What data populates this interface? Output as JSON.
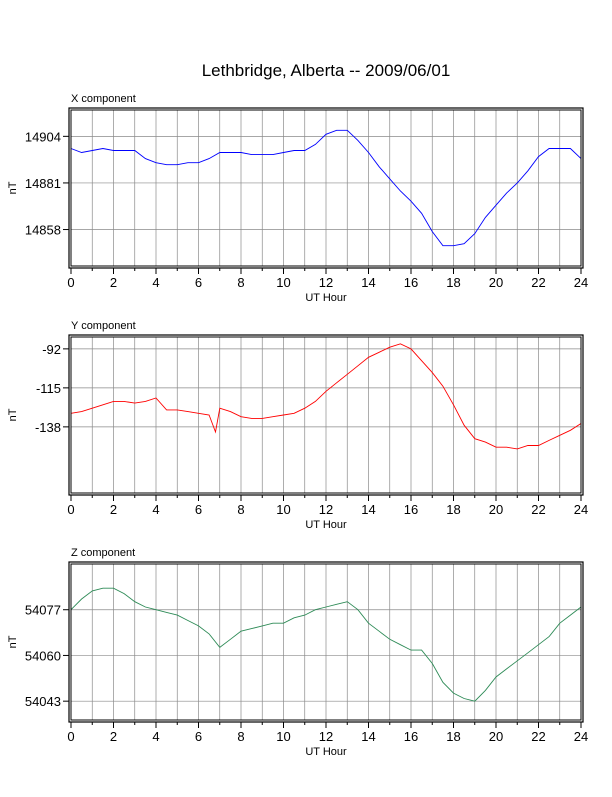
{
  "page": {
    "title": "Lethbridge, Alberta -- 2009/06/01"
  },
  "chart_data": [
    {
      "type": "line",
      "panel_title": "X component",
      "xlabel": "UT Hour",
      "ylabel": "nT",
      "xlim": [
        0,
        24
      ],
      "ylim": [
        14840,
        14917
      ],
      "x_ticks": [
        0,
        2,
        4,
        6,
        8,
        10,
        12,
        14,
        16,
        18,
        20,
        22,
        24
      ],
      "y_ticks": [
        14858,
        14881,
        14904
      ],
      "grid": true,
      "color": "#0000ff",
      "x": [
        0,
        0.5,
        1,
        1.5,
        2,
        2.5,
        3,
        3.5,
        4,
        4.5,
        5,
        5.5,
        6,
        6.5,
        7,
        7.5,
        8,
        8.5,
        9,
        9.5,
        10,
        10.5,
        11,
        11.5,
        12,
        12.5,
        13,
        13.5,
        14,
        14.5,
        15,
        15.5,
        16,
        16.5,
        17,
        17.5,
        18,
        18.5,
        19,
        19.5,
        20,
        20.5,
        21,
        21.5,
        22,
        22.5,
        23,
        23.5,
        24
      ],
      "y": [
        14898,
        14896,
        14897,
        14898,
        14897,
        14897,
        14897,
        14893,
        14891,
        14890,
        14890,
        14891,
        14891,
        14893,
        14896,
        14896,
        14896,
        14895,
        14895,
        14895,
        14896,
        14897,
        14897,
        14900,
        14905,
        14907,
        14907,
        14902,
        14896,
        14889,
        14883,
        14877,
        14872,
        14866,
        14857,
        14850,
        14850,
        14851,
        14856,
        14864,
        14870,
        14876,
        14881,
        14887,
        14894,
        14898,
        14898,
        14898,
        14893
      ]
    },
    {
      "type": "line",
      "panel_title": "Y component",
      "xlabel": "UT Hour",
      "ylabel": "nT",
      "xlim": [
        0,
        24
      ],
      "ylim": [
        -177,
        -85
      ],
      "x_ticks": [
        0,
        2,
        4,
        6,
        8,
        10,
        12,
        14,
        16,
        18,
        20,
        22,
        24
      ],
      "y_ticks": [
        -92,
        -115,
        -138
      ],
      "grid": true,
      "color": "#ff0000",
      "x": [
        0,
        0.5,
        1,
        1.5,
        2,
        2.5,
        3,
        3.5,
        4,
        4.5,
        5,
        5.5,
        6,
        6.5,
        6.8,
        7,
        7.5,
        8,
        8.5,
        9,
        9.5,
        10,
        10.5,
        11,
        11.5,
        12,
        12.5,
        13,
        13.5,
        14,
        14.5,
        15,
        15.5,
        16,
        16.5,
        17,
        17.5,
        18,
        18.5,
        19,
        19.5,
        20,
        20.5,
        21,
        21.5,
        22,
        22.5,
        23,
        23.5,
        24
      ],
      "y": [
        -130,
        -129,
        -127,
        -125,
        -123,
        -123,
        -124,
        -123,
        -121,
        -128,
        -128,
        -129,
        -130,
        -131,
        -141,
        -127,
        -129,
        -132,
        -133,
        -133,
        -132,
        -131,
        -130,
        -127,
        -123,
        -117,
        -112,
        -107,
        -102,
        -97,
        -94,
        -91,
        -89,
        -92,
        -99,
        -106,
        -114,
        -125,
        -137,
        -145,
        -147,
        -150,
        -150,
        -151,
        -149,
        -149,
        -146,
        -143,
        -140,
        -136
      ]
    },
    {
      "type": "line",
      "panel_title": "Z component",
      "xlabel": "UT Hour",
      "ylabel": "nT",
      "xlim": [
        0,
        24
      ],
      "ylim": [
        54036,
        54094
      ],
      "x_ticks": [
        0,
        2,
        4,
        6,
        8,
        10,
        12,
        14,
        16,
        18,
        20,
        22,
        24
      ],
      "y_ticks": [
        54043,
        54060,
        54077
      ],
      "grid": true,
      "color": "#2e8b57",
      "x": [
        0,
        0.5,
        1,
        1.5,
        2,
        2.5,
        3,
        3.5,
        4,
        4.5,
        5,
        5.5,
        6,
        6.5,
        7,
        7.5,
        8,
        8.5,
        9,
        9.5,
        10,
        10.5,
        11,
        11.5,
        12,
        12.5,
        13,
        13.5,
        14,
        14.5,
        15,
        15.5,
        16,
        16.5,
        17,
        17.5,
        18,
        18.5,
        19,
        19.5,
        20,
        20.5,
        21,
        21.5,
        22,
        22.5,
        23,
        23.5,
        24
      ],
      "y": [
        54077,
        54081,
        54084,
        54085,
        54085,
        54083,
        54080,
        54078,
        54077,
        54076,
        54075,
        54073,
        54071,
        54068,
        54063,
        54066,
        54069,
        54070,
        54071,
        54072,
        54072,
        54074,
        54075,
        54077,
        54078,
        54079,
        54080,
        54077,
        54072,
        54069,
        54066,
        54064,
        54062,
        54062,
        54057,
        54050,
        54046,
        54044,
        54043,
        54047,
        54052,
        54055,
        54058,
        54061,
        54064,
        54067,
        54072,
        54075,
        54078
      ]
    }
  ]
}
